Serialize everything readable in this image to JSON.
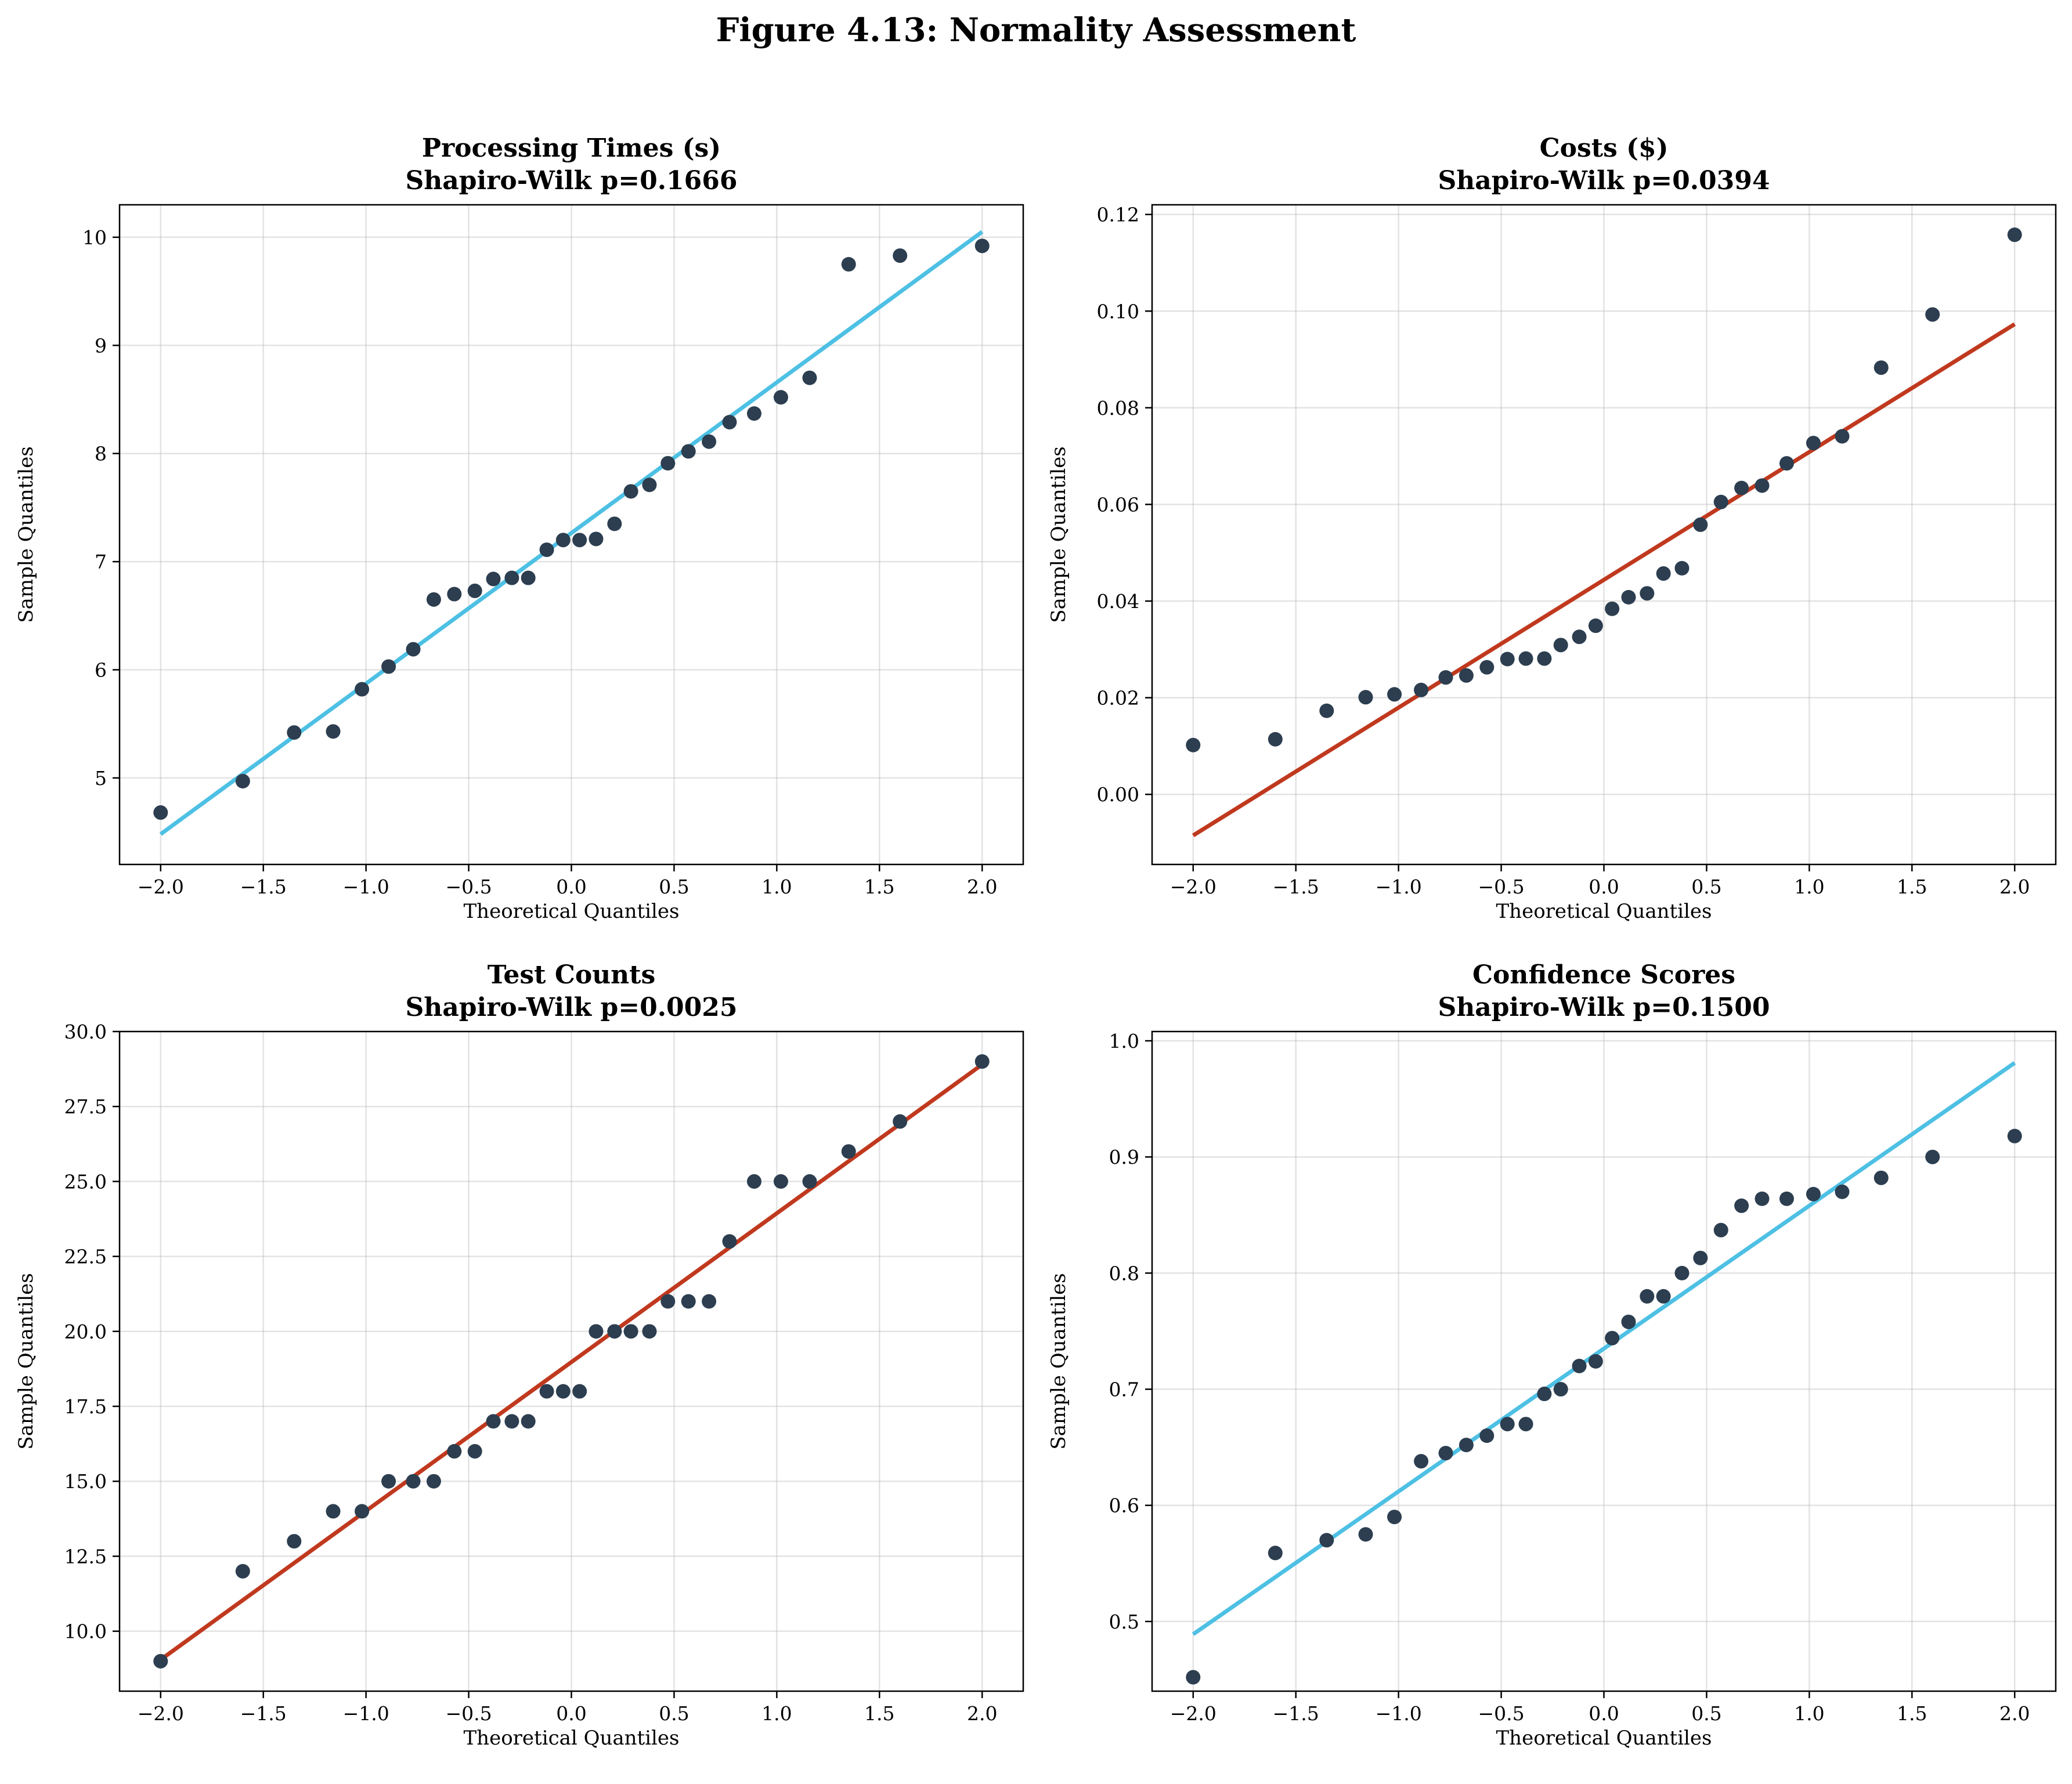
{
  "figure_title": "Figure 4.13: Normality Assessment",
  "colors": {
    "points": "#2c3e50",
    "line_blue": "#4dc0e4",
    "line_red": "#c0391e"
  },
  "chart_data": [
    {
      "type": "scatter",
      "title_line1": "Processing Times (s)",
      "title_line2": "Shapiro-Wilk p=0.1666",
      "xlabel": "Theoretical Quantiles",
      "ylabel": "Sample Quantiles",
      "xlim": [
        -2.2,
        2.2
      ],
      "ylim": [
        4.2,
        10.3
      ],
      "xticks": [
        -2.0,
        -1.5,
        -1.0,
        -0.5,
        0.0,
        0.5,
        1.0,
        1.5,
        2.0
      ],
      "xtick_labels": [
        "−2.0",
        "−1.5",
        "−1.0",
        "−0.5",
        "0.0",
        "0.5",
        "1.0",
        "1.5",
        "2.0"
      ],
      "yticks": [
        5,
        6,
        7,
        8,
        9,
        10
      ],
      "ytick_labels": [
        "5",
        "6",
        "7",
        "8",
        "9",
        "10"
      ],
      "grid": true,
      "line_color": "#4dc0e4",
      "fit_line": {
        "x": [
          -2.0,
          2.0
        ],
        "y": [
          4.48,
          10.05
        ]
      },
      "x": [
        -2.0,
        -1.6,
        -1.35,
        -1.16,
        -1.02,
        -0.89,
        -0.77,
        -0.67,
        -0.57,
        -0.47,
        -0.38,
        -0.29,
        -0.21,
        -0.12,
        -0.04,
        0.04,
        0.12,
        0.21,
        0.29,
        0.38,
        0.47,
        0.57,
        0.67,
        0.77,
        0.89,
        1.02,
        1.16,
        1.35,
        1.6,
        2.0
      ],
      "y": [
        4.68,
        4.97,
        5.42,
        5.43,
        5.82,
        6.03,
        6.19,
        6.65,
        6.7,
        6.73,
        6.84,
        6.85,
        6.85,
        7.11,
        7.2,
        7.2,
        7.21,
        7.35,
        7.65,
        7.71,
        7.91,
        8.02,
        8.11,
        8.29,
        8.37,
        8.52,
        8.7,
        9.75,
        9.83,
        9.92
      ]
    },
    {
      "type": "scatter",
      "title_line1": "Costs ($)",
      "title_line2": "Shapiro-Wilk p=0.0394",
      "xlabel": "Theoretical Quantiles",
      "ylabel": "Sample Quantiles",
      "xlim": [
        -2.2,
        2.2
      ],
      "ylim": [
        -0.0145,
        0.122
      ],
      "xticks": [
        -2.0,
        -1.5,
        -1.0,
        -0.5,
        0.0,
        0.5,
        1.0,
        1.5,
        2.0
      ],
      "xtick_labels": [
        "−2.0",
        "−1.5",
        "−1.0",
        "−0.5",
        "0.0",
        "0.5",
        "1.0",
        "1.5",
        "2.0"
      ],
      "yticks": [
        0.0,
        0.02,
        0.04,
        0.06,
        0.08,
        0.1,
        0.12
      ],
      "ytick_labels": [
        "0.00",
        "0.02",
        "0.04",
        "0.06",
        "0.08",
        "0.10",
        "0.12"
      ],
      "grid": true,
      "line_color": "#c0391e",
      "fit_line": {
        "x": [
          -2.0,
          2.0
        ],
        "y": [
          -0.0085,
          0.0973
        ]
      },
      "x": [
        -2.0,
        -1.6,
        -1.35,
        -1.16,
        -1.02,
        -0.89,
        -0.77,
        -0.67,
        -0.57,
        -0.47,
        -0.38,
        -0.29,
        -0.21,
        -0.12,
        -0.04,
        0.04,
        0.12,
        0.21,
        0.29,
        0.38,
        0.47,
        0.57,
        0.67,
        0.77,
        0.89,
        1.02,
        1.16,
        1.35,
        1.6,
        2.0
      ],
      "y": [
        0.0102,
        0.0114,
        0.0173,
        0.0201,
        0.0207,
        0.0216,
        0.0242,
        0.0246,
        0.0263,
        0.028,
        0.0281,
        0.0281,
        0.0309,
        0.0326,
        0.0349,
        0.0384,
        0.0408,
        0.0416,
        0.0457,
        0.0468,
        0.0558,
        0.0605,
        0.0634,
        0.0639,
        0.0685,
        0.0727,
        0.0741,
        0.0883,
        0.0993,
        0.1158
      ]
    },
    {
      "type": "scatter",
      "title_line1": "Test Counts",
      "title_line2": "Shapiro-Wilk p=0.0025",
      "xlabel": "Theoretical Quantiles",
      "ylabel": "Sample Quantiles",
      "xlim": [
        -2.2,
        2.2
      ],
      "ylim": [
        8.0,
        30.0
      ],
      "xticks": [
        -2.0,
        -1.5,
        -1.0,
        -0.5,
        0.0,
        0.5,
        1.0,
        1.5,
        2.0
      ],
      "xtick_labels": [
        "−2.0",
        "−1.5",
        "−1.0",
        "−0.5",
        "0.0",
        "0.5",
        "1.0",
        "1.5",
        "2.0"
      ],
      "yticks": [
        10.0,
        12.5,
        15.0,
        17.5,
        20.0,
        22.5,
        25.0,
        27.5,
        30.0
      ],
      "ytick_labels": [
        "10.0",
        "12.5",
        "15.0",
        "17.5",
        "20.0",
        "22.5",
        "25.0",
        "27.5",
        "30.0"
      ],
      "grid": true,
      "line_color": "#c0391e",
      "fit_line": {
        "x": [
          -2.0,
          2.0
        ],
        "y": [
          9.05,
          28.9
        ]
      },
      "x": [
        -2.0,
        -1.6,
        -1.35,
        -1.16,
        -1.02,
        -0.89,
        -0.77,
        -0.67,
        -0.57,
        -0.47,
        -0.38,
        -0.29,
        -0.21,
        -0.12,
        -0.04,
        0.04,
        0.12,
        0.21,
        0.29,
        0.38,
        0.47,
        0.57,
        0.67,
        0.77,
        0.89,
        1.02,
        1.16,
        1.35,
        1.6,
        2.0
      ],
      "y": [
        9,
        12,
        13,
        14,
        14,
        15,
        15,
        15,
        16,
        16,
        17,
        17,
        17,
        18,
        18,
        18,
        20,
        20,
        20,
        20,
        21,
        21,
        21,
        23,
        25,
        25,
        25,
        26,
        27,
        29
      ]
    },
    {
      "type": "scatter",
      "title_line1": "Confidence Scores",
      "title_line2": "Shapiro-Wilk p=0.1500",
      "xlabel": "Theoretical Quantiles",
      "ylabel": "Sample Quantiles",
      "xlim": [
        -2.2,
        2.2
      ],
      "ylim": [
        0.44,
        1.008
      ],
      "xticks": [
        -2.0,
        -1.5,
        -1.0,
        -0.5,
        0.0,
        0.5,
        1.0,
        1.5,
        2.0
      ],
      "xtick_labels": [
        "−2.0",
        "−1.5",
        "−1.0",
        "−0.5",
        "0.0",
        "0.5",
        "1.0",
        "1.5",
        "2.0"
      ],
      "yticks": [
        0.5,
        0.6,
        0.7,
        0.8,
        0.9,
        1.0
      ],
      "ytick_labels": [
        "0.5",
        "0.6",
        "0.7",
        "0.8",
        "0.9",
        "1.0"
      ],
      "grid": true,
      "line_color": "#4dc0e4",
      "fit_line": {
        "x": [
          -2.0,
          2.0
        ],
        "y": [
          0.489,
          0.981
        ]
      },
      "x": [
        -2.0,
        -1.6,
        -1.35,
        -1.16,
        -1.02,
        -0.89,
        -0.77,
        -0.67,
        -0.57,
        -0.47,
        -0.38,
        -0.29,
        -0.21,
        -0.12,
        -0.04,
        0.04,
        0.12,
        0.21,
        0.29,
        0.38,
        0.47,
        0.57,
        0.67,
        0.77,
        0.89,
        1.02,
        1.16,
        1.35,
        1.6,
        2.0
      ],
      "y": [
        0.452,
        0.559,
        0.57,
        0.575,
        0.59,
        0.638,
        0.645,
        0.652,
        0.66,
        0.67,
        0.67,
        0.696,
        0.7,
        0.72,
        0.724,
        0.744,
        0.758,
        0.78,
        0.78,
        0.8,
        0.813,
        0.837,
        0.858,
        0.864,
        0.864,
        0.868,
        0.87,
        0.882,
        0.9,
        0.918
      ]
    }
  ]
}
